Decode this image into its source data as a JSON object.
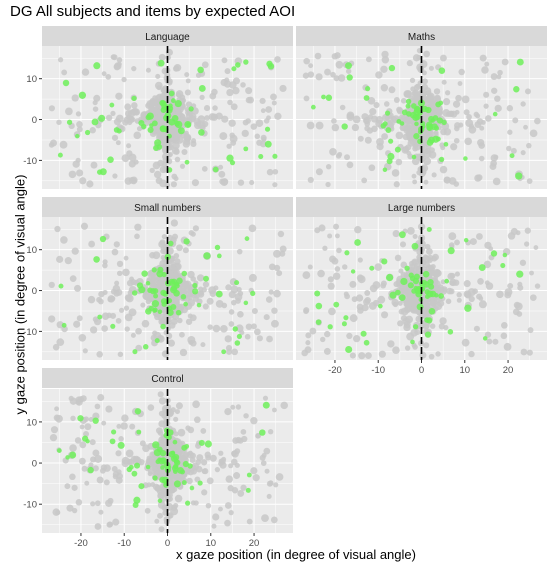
{
  "chart_data": {
    "type": "scatter",
    "title": "DG All subjects and items by expected AOI",
    "xlabel": "x gaze position (in degree of visual angle)",
    "ylabel": "y gaze position (in degree of visual angle)",
    "xlim": [
      -29,
      29
    ],
    "ylim": [
      -17,
      18
    ],
    "x_ticks": [
      -20,
      -10,
      0,
      10,
      20
    ],
    "y_ticks": [
      -10,
      0,
      10
    ],
    "grid": true,
    "vertical_reference_line": 0,
    "colors": {
      "panel_bg": "#ebebeb",
      "strip_bg": "#d9d9d9",
      "grid": "#ffffff",
      "off_aoi_points": "#c8c8c8",
      "in_aoi_points": "#6ef05a",
      "reference_line": "#000000"
    },
    "panels": [
      {
        "name": "Language"
      },
      {
        "name": "Maths"
      },
      {
        "name": "Small numbers"
      },
      {
        "name": "Large numbers"
      },
      {
        "name": "Control"
      }
    ]
  }
}
